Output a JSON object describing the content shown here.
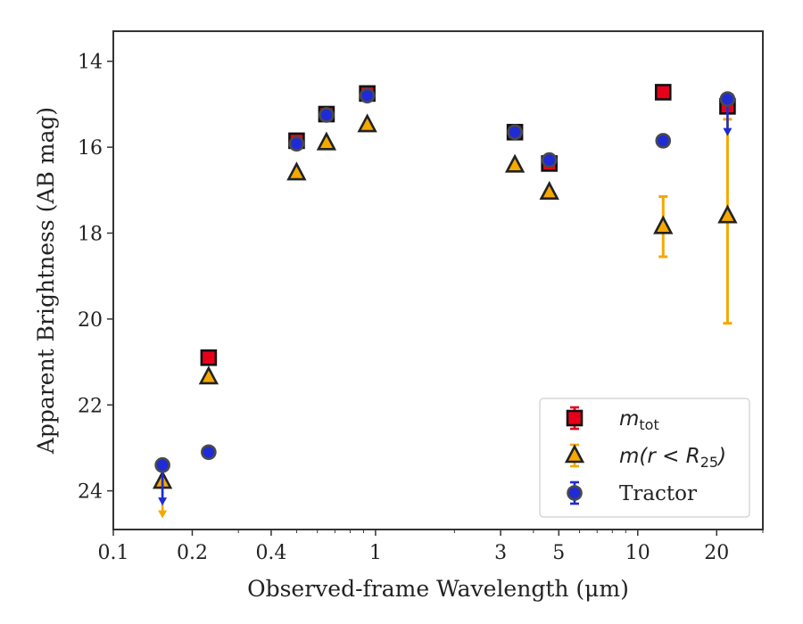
{
  "chart_data": {
    "type": "scatter",
    "xscale": "log",
    "xlim": [
      0.1,
      30
    ],
    "ylim": [
      24.9,
      13.3
    ],
    "y_inverted": true,
    "xlabel": "Observed-frame Wavelength (μm)",
    "ylabel": "Apparent Brightness (AB mag)",
    "xticks": [
      0.1,
      0.2,
      0.4,
      1,
      3,
      5,
      10,
      20
    ],
    "xtick_labels": [
      "0.1",
      "0.2",
      "0.4",
      "1",
      "3",
      "5",
      "10",
      "20"
    ],
    "yticks": [
      14,
      16,
      18,
      20,
      22,
      24
    ],
    "ytick_labels": [
      "14",
      "16",
      "18",
      "20",
      "22",
      "24"
    ],
    "legend_position": "lower-right",
    "series": [
      {
        "name": "m_tot",
        "legend_main": "m",
        "legend_sub": "tot",
        "legend_suffix": "",
        "marker": "square",
        "color": "#e8001a",
        "points": [
          {
            "x": 0.231,
            "y": 20.9
          },
          {
            "x": 0.5,
            "y": 15.85
          },
          {
            "x": 0.65,
            "y": 15.23
          },
          {
            "x": 0.93,
            "y": 14.75
          },
          {
            "x": 3.4,
            "y": 15.65
          },
          {
            "x": 4.6,
            "y": 16.38
          },
          {
            "x": 12.5,
            "y": 14.72
          },
          {
            "x": 22.0,
            "y": 15.05
          }
        ]
      },
      {
        "name": "m(r<R_25)",
        "legend_main": "m(r < R",
        "legend_sub": "25",
        "legend_suffix": ")",
        "marker": "triangle",
        "color": "#f5a800",
        "points": [
          {
            "x": 0.154,
            "y": 23.78,
            "upper_limit_to": 24.6
          },
          {
            "x": 0.231,
            "y": 21.35
          },
          {
            "x": 0.5,
            "y": 16.6
          },
          {
            "x": 0.65,
            "y": 15.9
          },
          {
            "x": 0.93,
            "y": 15.48
          },
          {
            "x": 3.4,
            "y": 16.42
          },
          {
            "x": 4.6,
            "y": 17.05
          },
          {
            "x": 12.5,
            "y": 17.85,
            "err_low": 17.15,
            "err_high": 18.55
          },
          {
            "x": 22.0,
            "y": 17.6,
            "err_low": 15.35,
            "err_high": 20.1
          }
        ]
      },
      {
        "name": "Tractor",
        "legend_main": "Tractor",
        "legend_sub": "",
        "legend_suffix": "",
        "marker": "circle",
        "color": "#1f2bd6",
        "points": [
          {
            "x": 0.154,
            "y": 23.4,
            "upper_limit_to": 24.3
          },
          {
            "x": 0.231,
            "y": 23.1
          },
          {
            "x": 0.5,
            "y": 15.92
          },
          {
            "x": 0.65,
            "y": 15.25
          },
          {
            "x": 0.93,
            "y": 14.8
          },
          {
            "x": 3.4,
            "y": 15.65
          },
          {
            "x": 4.6,
            "y": 16.3
          },
          {
            "x": 12.5,
            "y": 15.85
          },
          {
            "x": 22.0,
            "y": 14.88,
            "upper_limit_to": 15.7
          }
        ]
      }
    ]
  }
}
